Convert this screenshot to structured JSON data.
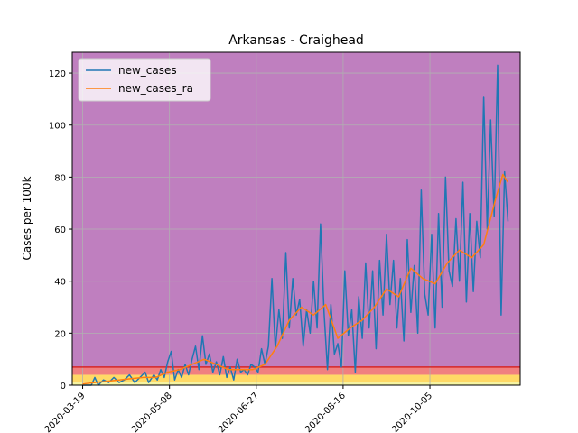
{
  "chart_data": {
    "type": "line",
    "title": "Arkansas - Craighead",
    "xlabel": "",
    "ylabel": "Cases per 100k",
    "x_start": "2020-03-13",
    "x_end": "2020-11-26",
    "x_tick_labels": [
      "2020-03-19",
      "2020-05-08",
      "2020-06-27",
      "2020-08-16",
      "2020-10-05"
    ],
    "ylim": [
      0,
      128
    ],
    "y_ticks": [
      0,
      20,
      40,
      60,
      80,
      100,
      120
    ],
    "grid": true,
    "legend_position": "top-left",
    "background_bands": [
      {
        "from": 0,
        "to": 1,
        "color": "#f5f5a0"
      },
      {
        "from": 1,
        "to": 4,
        "color": "#ffd966"
      },
      {
        "from": 4,
        "to": 7,
        "color": "#f08080"
      },
      {
        "from": 7,
        "to": 128,
        "color": "#bf7fbf"
      }
    ],
    "threshold_line": {
      "y": 7,
      "color": "#d62728"
    },
    "series": [
      {
        "name": "new_cases",
        "color": "#1f77b4",
        "points": [
          [
            "2020-03-19",
            0
          ],
          [
            "2020-03-24",
            0
          ],
          [
            "2020-03-26",
            3
          ],
          [
            "2020-03-28",
            0
          ],
          [
            "2020-03-31",
            2
          ],
          [
            "2020-04-03",
            1
          ],
          [
            "2020-04-06",
            3
          ],
          [
            "2020-04-09",
            1
          ],
          [
            "2020-04-12",
            2
          ],
          [
            "2020-04-15",
            4
          ],
          [
            "2020-04-18",
            1
          ],
          [
            "2020-04-21",
            3
          ],
          [
            "2020-04-24",
            5
          ],
          [
            "2020-04-26",
            1
          ],
          [
            "2020-04-29",
            4
          ],
          [
            "2020-05-01",
            2
          ],
          [
            "2020-05-03",
            6
          ],
          [
            "2020-05-05",
            3
          ],
          [
            "2020-05-07",
            9
          ],
          [
            "2020-05-09",
            13
          ],
          [
            "2020-05-11",
            2
          ],
          [
            "2020-05-13",
            6
          ],
          [
            "2020-05-15",
            3
          ],
          [
            "2020-05-17",
            8
          ],
          [
            "2020-05-19",
            4
          ],
          [
            "2020-05-21",
            10
          ],
          [
            "2020-05-23",
            15
          ],
          [
            "2020-05-25",
            6
          ],
          [
            "2020-05-27",
            19
          ],
          [
            "2020-05-29",
            8
          ],
          [
            "2020-05-31",
            12
          ],
          [
            "2020-06-02",
            5
          ],
          [
            "2020-06-04",
            9
          ],
          [
            "2020-06-06",
            4
          ],
          [
            "2020-06-08",
            11
          ],
          [
            "2020-06-10",
            3
          ],
          [
            "2020-06-12",
            7
          ],
          [
            "2020-06-14",
            2
          ],
          [
            "2020-06-16",
            10
          ],
          [
            "2020-06-18",
            5
          ],
          [
            "2020-06-20",
            6
          ],
          [
            "2020-06-22",
            4
          ],
          [
            "2020-06-24",
            8
          ],
          [
            "2020-06-26",
            7
          ],
          [
            "2020-06-28",
            5
          ],
          [
            "2020-06-30",
            14
          ],
          [
            "2020-07-02",
            8
          ],
          [
            "2020-07-04",
            15
          ],
          [
            "2020-07-06",
            41
          ],
          [
            "2020-07-08",
            14
          ],
          [
            "2020-07-10",
            29
          ],
          [
            "2020-07-12",
            18
          ],
          [
            "2020-07-14",
            51
          ],
          [
            "2020-07-16",
            22
          ],
          [
            "2020-07-18",
            41
          ],
          [
            "2020-07-20",
            27
          ],
          [
            "2020-07-22",
            33
          ],
          [
            "2020-07-24",
            15
          ],
          [
            "2020-07-26",
            29
          ],
          [
            "2020-07-28",
            20
          ],
          [
            "2020-07-30",
            40
          ],
          [
            "2020-08-01",
            22
          ],
          [
            "2020-08-03",
            62
          ],
          [
            "2020-08-05",
            28
          ],
          [
            "2020-08-07",
            6
          ],
          [
            "2020-08-09",
            31
          ],
          [
            "2020-08-11",
            12
          ],
          [
            "2020-08-13",
            16
          ],
          [
            "2020-08-15",
            7
          ],
          [
            "2020-08-17",
            44
          ],
          [
            "2020-08-19",
            19
          ],
          [
            "2020-08-21",
            29
          ],
          [
            "2020-08-23",
            5
          ],
          [
            "2020-08-25",
            34
          ],
          [
            "2020-08-27",
            18
          ],
          [
            "2020-08-29",
            47
          ],
          [
            "2020-08-31",
            22
          ],
          [
            "2020-09-02",
            44
          ],
          [
            "2020-09-04",
            14
          ],
          [
            "2020-09-06",
            48
          ],
          [
            "2020-09-08",
            27
          ],
          [
            "2020-09-10",
            58
          ],
          [
            "2020-09-12",
            31
          ],
          [
            "2020-09-14",
            48
          ],
          [
            "2020-09-16",
            22
          ],
          [
            "2020-09-18",
            41
          ],
          [
            "2020-09-20",
            17
          ],
          [
            "2020-09-22",
            56
          ],
          [
            "2020-09-24",
            28
          ],
          [
            "2020-09-26",
            46
          ],
          [
            "2020-09-28",
            20
          ],
          [
            "2020-09-30",
            75
          ],
          [
            "2020-10-02",
            35
          ],
          [
            "2020-10-04",
            27
          ],
          [
            "2020-10-06",
            58
          ],
          [
            "2020-10-08",
            22
          ],
          [
            "2020-10-10",
            66
          ],
          [
            "2020-10-12",
            30
          ],
          [
            "2020-10-14",
            80
          ],
          [
            "2020-10-16",
            44
          ],
          [
            "2020-10-18",
            38
          ],
          [
            "2020-10-20",
            64
          ],
          [
            "2020-10-22",
            40
          ],
          [
            "2020-10-24",
            78
          ],
          [
            "2020-10-26",
            32
          ],
          [
            "2020-10-28",
            66
          ],
          [
            "2020-10-30",
            36
          ],
          [
            "2020-11-01",
            63
          ],
          [
            "2020-11-03",
            49
          ],
          [
            "2020-11-05",
            111
          ],
          [
            "2020-11-07",
            60
          ],
          [
            "2020-11-09",
            102
          ],
          [
            "2020-11-11",
            65
          ],
          [
            "2020-11-13",
            123
          ],
          [
            "2020-11-15",
            27
          ],
          [
            "2020-11-17",
            82
          ],
          [
            "2020-11-19",
            63
          ]
        ]
      },
      {
        "name": "new_cases_ra",
        "color": "#ff7f0e",
        "points": [
          [
            "2020-03-19",
            0.5
          ],
          [
            "2020-03-26",
            1
          ],
          [
            "2020-04-02",
            1.5
          ],
          [
            "2020-04-09",
            2
          ],
          [
            "2020-04-16",
            2.5
          ],
          [
            "2020-04-23",
            3
          ],
          [
            "2020-04-30",
            3
          ],
          [
            "2020-05-07",
            5
          ],
          [
            "2020-05-14",
            6
          ],
          [
            "2020-05-21",
            8
          ],
          [
            "2020-05-28",
            10
          ],
          [
            "2020-06-04",
            8
          ],
          [
            "2020-06-11",
            6
          ],
          [
            "2020-06-18",
            6
          ],
          [
            "2020-06-25",
            6
          ],
          [
            "2020-07-02",
            8
          ],
          [
            "2020-07-09",
            15
          ],
          [
            "2020-07-16",
            25
          ],
          [
            "2020-07-23",
            30
          ],
          [
            "2020-07-30",
            27
          ],
          [
            "2020-08-06",
            31
          ],
          [
            "2020-08-13",
            18
          ],
          [
            "2020-08-20",
            22
          ],
          [
            "2020-08-27",
            25
          ],
          [
            "2020-09-03",
            30
          ],
          [
            "2020-09-10",
            37
          ],
          [
            "2020-09-17",
            34
          ],
          [
            "2020-09-24",
            45
          ],
          [
            "2020-10-01",
            41
          ],
          [
            "2020-10-08",
            39
          ],
          [
            "2020-10-15",
            47
          ],
          [
            "2020-10-22",
            52
          ],
          [
            "2020-10-29",
            49
          ],
          [
            "2020-11-05",
            54
          ],
          [
            "2020-11-12",
            72
          ],
          [
            "2020-11-16",
            81
          ],
          [
            "2020-11-19",
            78
          ]
        ]
      }
    ]
  }
}
